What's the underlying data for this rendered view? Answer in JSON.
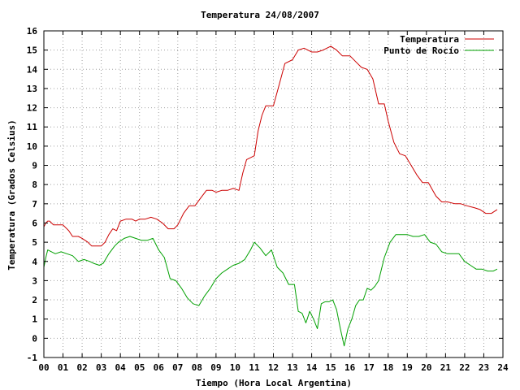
{
  "chart_data": {
    "type": "line",
    "title": "Temperatura 24/08/2007",
    "xlabel": "Tiempo (Hora Local Argentina)",
    "ylabel": "Temperatura (Grados Celsius)",
    "xlim": [
      0,
      24
    ],
    "ylim": [
      -1,
      16
    ],
    "x_ticks": [
      "00",
      "01",
      "02",
      "03",
      "04",
      "05",
      "06",
      "07",
      "08",
      "09",
      "10",
      "11",
      "12",
      "13",
      "14",
      "15",
      "16",
      "17",
      "18",
      "19",
      "20",
      "21",
      "22",
      "23",
      "24"
    ],
    "y_ticks": [
      "-1",
      "0",
      "1",
      "2",
      "3",
      "4",
      "5",
      "6",
      "7",
      "8",
      "9",
      "10",
      "11",
      "12",
      "13",
      "14",
      "15",
      "16"
    ],
    "grid": true,
    "legend_position": "top-right",
    "series": [
      {
        "name": "Temperatura",
        "color": "#cc0000",
        "x": [
          0.0,
          0.1,
          0.2,
          0.3,
          0.5,
          0.7,
          1.0,
          1.3,
          1.5,
          1.8,
          2.0,
          2.3,
          2.5,
          2.8,
          3.0,
          3.2,
          3.4,
          3.6,
          3.8,
          4.0,
          4.3,
          4.6,
          4.8,
          5.0,
          5.3,
          5.6,
          5.9,
          6.2,
          6.5,
          6.8,
          7.0,
          7.3,
          7.6,
          7.9,
          8.2,
          8.5,
          8.8,
          9.0,
          9.3,
          9.6,
          9.9,
          10.2,
          10.4,
          10.6,
          10.8,
          11.0,
          11.2,
          11.4,
          11.6,
          11.8,
          12.0,
          12.3,
          12.6,
          13.0,
          13.3,
          13.6,
          14.0,
          14.3,
          14.6,
          15.0,
          15.3,
          15.6,
          16.0,
          16.3,
          16.6,
          16.9,
          17.2,
          17.5,
          17.8,
          18.0,
          18.3,
          18.6,
          18.9,
          19.2,
          19.5,
          19.8,
          20.1,
          20.5,
          20.8,
          21.1,
          21.5,
          21.8,
          22.1,
          22.5,
          22.8,
          23.1,
          23.4,
          23.7
        ],
        "y": [
          5.8,
          6.0,
          6.1,
          6.1,
          5.9,
          5.9,
          5.9,
          5.6,
          5.3,
          5.3,
          5.2,
          5.0,
          4.8,
          4.8,
          4.8,
          5.0,
          5.4,
          5.7,
          5.6,
          6.1,
          6.2,
          6.2,
          6.1,
          6.2,
          6.2,
          6.3,
          6.2,
          6.0,
          5.7,
          5.7,
          5.9,
          6.5,
          6.9,
          6.9,
          7.3,
          7.7,
          7.7,
          7.6,
          7.7,
          7.7,
          7.8,
          7.7,
          8.6,
          9.3,
          9.4,
          9.5,
          10.8,
          11.6,
          12.1,
          12.1,
          12.1,
          13.2,
          14.3,
          14.5,
          15.0,
          15.1,
          14.9,
          14.9,
          15.0,
          15.2,
          15.0,
          14.7,
          14.7,
          14.4,
          14.1,
          14.0,
          13.5,
          12.2,
          12.2,
          11.3,
          10.2,
          9.6,
          9.5,
          9.0,
          8.5,
          8.1,
          8.1,
          7.4,
          7.1,
          7.1,
          7.0,
          7.0,
          6.9,
          6.8,
          6.7,
          6.5,
          6.5,
          6.7
        ]
      },
      {
        "name": "Punto de Rocío",
        "color": "#00a000",
        "x": [
          0.0,
          0.1,
          0.2,
          0.4,
          0.6,
          0.9,
          1.2,
          1.5,
          1.8,
          2.1,
          2.4,
          2.6,
          2.9,
          3.1,
          3.4,
          3.7,
          3.9,
          4.2,
          4.5,
          4.8,
          5.1,
          5.4,
          5.7,
          6.0,
          6.3,
          6.6,
          6.9,
          7.2,
          7.5,
          7.8,
          8.1,
          8.4,
          8.7,
          9.0,
          9.3,
          9.6,
          9.9,
          10.2,
          10.5,
          10.8,
          11.0,
          11.3,
          11.6,
          11.9,
          12.2,
          12.5,
          12.8,
          13.1,
          13.3,
          13.5,
          13.7,
          13.9,
          14.1,
          14.3,
          14.5,
          14.7,
          14.9,
          15.1,
          15.3,
          15.5,
          15.7,
          15.9,
          16.1,
          16.3,
          16.5,
          16.7,
          16.9,
          17.1,
          17.3,
          17.5,
          17.8,
          18.1,
          18.4,
          18.7,
          19.0,
          19.3,
          19.6,
          19.9,
          20.2,
          20.5,
          20.8,
          21.1,
          21.4,
          21.7,
          22.0,
          22.3,
          22.6,
          22.9,
          23.2,
          23.5,
          23.7
        ],
        "y": [
          3.7,
          4.2,
          4.6,
          4.5,
          4.4,
          4.5,
          4.4,
          4.3,
          4.0,
          4.1,
          4.0,
          3.9,
          3.8,
          3.9,
          4.4,
          4.8,
          5.0,
          5.2,
          5.3,
          5.2,
          5.1,
          5.1,
          5.2,
          4.6,
          4.2,
          3.1,
          3.0,
          2.6,
          2.1,
          1.8,
          1.7,
          2.2,
          2.6,
          3.1,
          3.4,
          3.6,
          3.8,
          3.9,
          4.1,
          4.6,
          5.0,
          4.7,
          4.3,
          4.6,
          3.7,
          3.4,
          2.8,
          2.8,
          1.4,
          1.3,
          0.8,
          1.4,
          1.0,
          0.5,
          1.8,
          1.9,
          1.9,
          2.0,
          1.5,
          0.5,
          -0.4,
          0.5,
          1.0,
          1.7,
          2.0,
          2.0,
          2.6,
          2.5,
          2.7,
          3.0,
          4.2,
          5.0,
          5.4,
          5.4,
          5.4,
          5.3,
          5.3,
          5.4,
          5.0,
          4.9,
          4.5,
          4.4,
          4.4,
          4.4,
          4.0,
          3.8,
          3.6,
          3.6,
          3.5,
          3.5,
          3.6
        ]
      }
    ]
  }
}
